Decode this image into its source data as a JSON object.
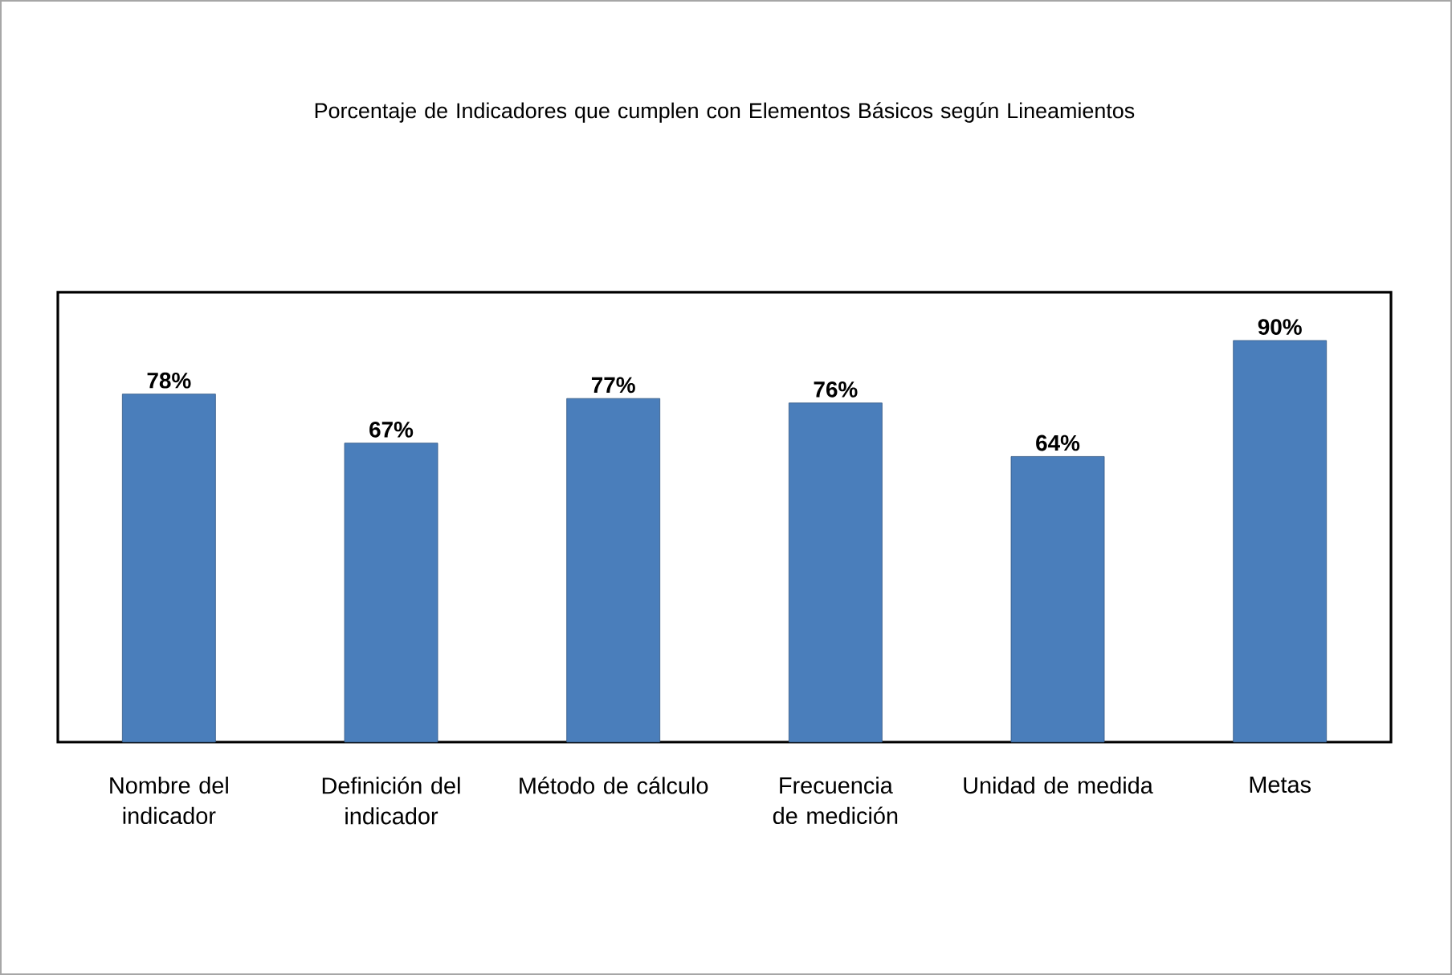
{
  "chart_data": {
    "type": "bar",
    "title": "Porcentaje de Indicadores que cumplen con Elementos Básicos según Lineamientos",
    "categories": [
      "Nombre del indicador",
      "Definición del indicador",
      "Método de cálculo",
      "Frecuencia de medición",
      "Unidad de medida",
      "Metas"
    ],
    "values": [
      78,
      67,
      77,
      76,
      64,
      90
    ],
    "value_labels": [
      "78%",
      "67%",
      "77%",
      "76%",
      "64%",
      "90%"
    ],
    "color": "#4a7ebb"
  }
}
